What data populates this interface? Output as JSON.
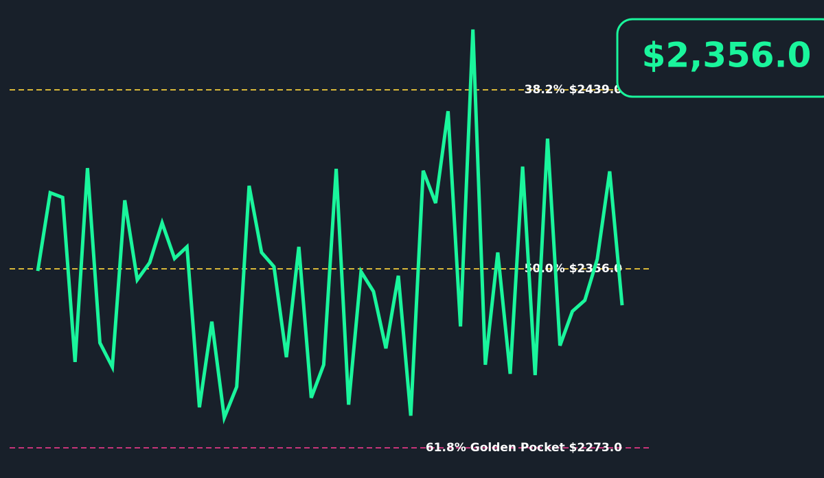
{
  "chart_data": {
    "type": "line",
    "series": [
      {
        "color": "#1af59c",
        "values": [
          2355.0,
          2391.3,
          2389.1,
          2312.8,
          2402.7,
          2321.7,
          2310.5,
          2387.8,
          2350.9,
          2358.9,
          2377.3,
          2360.8,
          2366.2,
          2291.8,
          2331.5,
          2287.0,
          2301.3,
          2394.5,
          2363.6,
          2357.0,
          2315.0,
          2366.2,
          2296.2,
          2311.5,
          2402.4,
          2293.0,
          2354.7,
          2345.5,
          2319.1,
          2352.8,
          2287.9,
          2401.5,
          2386.5,
          2429.1,
          2329.3,
          2467.0,
          2311.5,
          2363.6,
          2307.3,
          2403.4,
          2306.7,
          2416.4,
          2320.4,
          2336.3,
          2341.4,
          2360.5,
          2401.2,
          2339.1
        ]
      }
    ],
    "ylim": [
      2273,
      2439
    ],
    "levels": [
      {
        "value": 2439,
        "label": "38.2% $2439.0",
        "color": "#d9b838"
      },
      {
        "value": 2356,
        "label": "50.0% $2356.0",
        "color": "#d9b838"
      },
      {
        "value": 2273,
        "label": "61.8% Golden Pocket $2273.0",
        "color": "#c8347a"
      }
    ],
    "price": {
      "value": 2356,
      "label": "$2,356.0",
      "color": "#1af59c"
    }
  }
}
